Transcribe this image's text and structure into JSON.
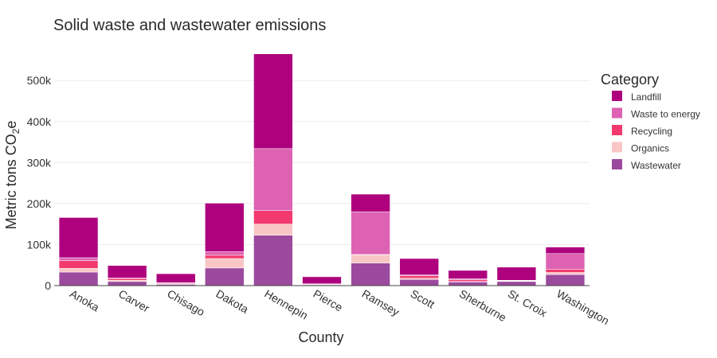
{
  "chart_data": {
    "type": "bar",
    "stacked": true,
    "title": "Solid waste and wastewater emissions",
    "xlabel": "County",
    "ylabel": "Metric tons CO",
    "ylabel_sub": "2",
    "ylabel_suffix": "e",
    "ylim": [
      0,
      580000
    ],
    "yticks": [
      0,
      100000,
      200000,
      300000,
      400000,
      500000
    ],
    "ytick_labels": [
      "0",
      "100k",
      "200k",
      "300k",
      "400k",
      "500k"
    ],
    "grid": true,
    "legend_title": "Category",
    "legend_position": "right",
    "categories": [
      "Anoka",
      "Carver",
      "Chisago",
      "Dakota",
      "Hennepin",
      "Pierce",
      "Ramsey",
      "Scott",
      "Sherburne",
      "St. Croix",
      "Washington"
    ],
    "series": [
      {
        "name": "Wastewater",
        "color": "#9B4A9D",
        "values": [
          33000,
          10000,
          3000,
          43000,
          123000,
          2000,
          55000,
          15000,
          9000,
          10000,
          27000
        ]
      },
      {
        "name": "Organics",
        "color": "#F9C6C6",
        "values": [
          9000,
          3000,
          1000,
          23000,
          27000,
          500,
          20000,
          3000,
          1000,
          1000,
          5000
        ]
      },
      {
        "name": "Recycling",
        "color": "#F23A6F",
        "values": [
          19000,
          4000,
          2000,
          8000,
          33000,
          1000,
          1000,
          6000,
          4000,
          1000,
          8000
        ]
      },
      {
        "name": "Waste to energy",
        "color": "#DE62B3",
        "values": [
          7000,
          2000,
          1000,
          9000,
          151000,
          1000,
          104000,
          2000,
          3000,
          1000,
          38000
        ]
      },
      {
        "name": "Landfill",
        "color": "#AE017E",
        "values": [
          98000,
          30000,
          22000,
          118000,
          231000,
          17000,
          43000,
          40000,
          20000,
          32000,
          16000
        ]
      }
    ],
    "legend_order": [
      "Landfill",
      "Waste to energy",
      "Recycling",
      "Organics",
      "Wastewater"
    ]
  }
}
